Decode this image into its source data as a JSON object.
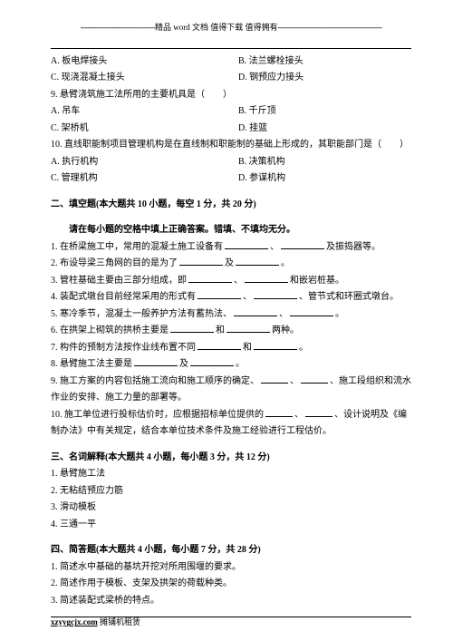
{
  "banner": {
    "left_dashes": "---------------------------------",
    "text": "精品 word 文档 值得下载 值得拥有",
    "right_dashes": "----------------------------------------------"
  },
  "mc": {
    "q8": {
      "A": "A. 板电焊接头",
      "B": "B. 法兰螺栓接头",
      "C": "C. 现浇混凝土接头",
      "D": "D. 钢预应力接头"
    },
    "q9": {
      "stem": "9. 悬臂浇筑施工法所用的主要机具是（　　）",
      "A": "A. 吊车",
      "B": "B. 千斤顶",
      "C": "C. 架桥机",
      "D": "D. 挂篮"
    },
    "q10": {
      "stem": "10. 直线职能制项目管理机构是在直线制和职能制的基础上形成的，其职能部门是（　　）",
      "A": "A. 执行机构",
      "B": "B. 决策机构",
      "C": "C. 管理机构",
      "D": "D. 参谋机构"
    }
  },
  "s2": {
    "title": "二、填空题(本大题共 10 小题，每空 1 分，共 20 分)",
    "sub": "请在每小题的空格中填上正确答案。错填、不填均无分。",
    "i1a": "1. 在桥梁施工中，常用的混凝土施工设备有",
    "i1b": "、",
    "i1c": "及振捣器等。",
    "i2a": "2. 布设导梁三角网的目的是为了",
    "i2b": "及",
    "i2c": "。",
    "i3a": "3. 管柱基础主要由三部分组成，即",
    "i3b": "、",
    "i3c": "和嵌岩桩基。",
    "i4a": "4. 装配式墩台目前经常采用的形式有",
    "i4b": "、",
    "i4c": "、管节式和环圈式墩台。",
    "i5a": "5. 寒冷季节，混凝土一般养护方法有蓄热法、",
    "i5b": "、",
    "i5c": "。",
    "i6a": "6. 在拱架上砌筑的拱桥主要是",
    "i6b": "和",
    "i6c": "两种。",
    "i7a": "7. 构件的预制方法按作业线布置不同",
    "i7b": "和",
    "i7c": "。",
    "i8a": "8. 悬臂施工法主要是",
    "i8b": "及",
    "i8c": "。",
    "i9a": "9. 施工方案的内容包括施工流向和施工顺序的确定、",
    "i9b": "、",
    "i9c": "、施工段组织和流水作业的安排、施工力量的部署等。",
    "i10a": "10. 施工单位进行投标估价时，应根据招标单位提供的",
    "i10b": "、",
    "i10c": "、设计说明及《编制办法》中有关规定，结合本单位技术条件及施工经验进行工程估价。"
  },
  "s3": {
    "title": "三、名词解释(本大题共 4 小题，每小题 3 分，共 12 分)",
    "i1": "1. 悬臂施工法",
    "i2": "2. 无粘结预应力筋",
    "i3": "3. 滑动模板",
    "i4": "4. 三通一平"
  },
  "s4": {
    "title": "四、简答题(本大题共 4 小题，每小题 7 分，共 28 分)",
    "i1": "1. 简述水中基础的基坑开挖对所用围堰的要求。",
    "i2": "2. 简述作用于模板、支架及拱架的荷载种类。",
    "i3": "3. 简述装配式梁桥的特点。"
  },
  "footer": {
    "link": "xzyygcjx.com",
    "text": " 摊铺机租赁"
  }
}
